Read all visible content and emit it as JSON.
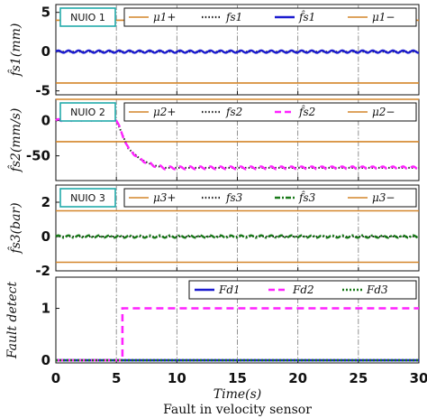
{
  "chart_data": {
    "type": "line",
    "xlabel": "Time(s)",
    "caption": "Fault in velocity sensor",
    "xlim": [
      0,
      30
    ],
    "x_ticks": [
      "0",
      "5",
      "10",
      "15",
      "20",
      "25",
      "30"
    ],
    "fault_time": 5,
    "colors": {
      "threshold": "#d4862a",
      "truth": "#222222",
      "est_blue": "#1c1ccf",
      "est_magenta": "#ff22ff",
      "est_green": "#1a7a1a",
      "nuio_box": "#22aaaa"
    },
    "panels": [
      {
        "box_label": "NUIO 1",
        "ylabel": "f̂s1(mm)",
        "ylim": [
          -5.5,
          6
        ],
        "y_ticks": [
          -5,
          0,
          5
        ],
        "legend": [
          "μ1+",
          "fs1",
          "f̂s1",
          "μ1−"
        ],
        "thresholds": [
          4,
          -4
        ],
        "truth": {
          "name": "fs1",
          "x": [
            0,
            30
          ],
          "y": [
            0,
            0
          ]
        },
        "estimate": {
          "name": "f̂s1",
          "color": "blue",
          "style": "solid",
          "x": [
            0,
            30
          ],
          "y": [
            0,
            0
          ],
          "ripple": 0.15
        }
      },
      {
        "box_label": "NUIO 2",
        "ylabel": "f̂s2(mm/s)",
        "ylim": [
          -85,
          30
        ],
        "y_ticks": [
          -50,
          0
        ],
        "legend": [
          "μ2+",
          "fs2",
          "f̂s2",
          "μ2−"
        ],
        "thresholds": [
          30,
          -30
        ],
        "truth": {
          "name": "fs2",
          "x": [
            0,
            5,
            5.5,
            6,
            7,
            8,
            9,
            30
          ],
          "y": [
            0,
            0,
            -20,
            -40,
            -55,
            -63,
            -67,
            -67
          ]
        },
        "estimate": {
          "name": "f̂s2",
          "color": "magenta",
          "style": "dashed",
          "x": [
            0,
            5,
            5.5,
            6,
            7,
            8,
            9,
            30
          ],
          "y": [
            0,
            0,
            -20,
            -40,
            -55,
            -63,
            -67,
            -67
          ],
          "ripple": 2
        }
      },
      {
        "box_label": "NUIO 3",
        "ylabel": "f̂s3(bar)",
        "ylim": [
          -2,
          3
        ],
        "y_ticks": [
          -2,
          0,
          2
        ],
        "legend": [
          "μ3+",
          "fs3",
          "f̂s3",
          "μ3−"
        ],
        "thresholds": [
          1.5,
          -1.5
        ],
        "truth": {
          "name": "fs3",
          "x": [
            0,
            30
          ],
          "y": [
            0,
            0
          ]
        },
        "estimate": {
          "name": "f̂s3",
          "color": "green",
          "style": "dashdot",
          "x": [
            0,
            30
          ],
          "y": [
            0,
            0
          ],
          "ripple": 0.07
        }
      },
      {
        "box_label": "",
        "ylabel": "Fault detect",
        "ylim": [
          -0.05,
          1.6
        ],
        "y_ticks": [
          0,
          1
        ],
        "legend": [
          "Fd1",
          "Fd2",
          "Fd3"
        ],
        "series": [
          {
            "name": "Fd1",
            "color": "blue",
            "style": "solid",
            "x": [
              0,
              30
            ],
            "y": [
              0,
              0
            ]
          },
          {
            "name": "Fd2",
            "color": "magenta",
            "style": "dashed",
            "x": [
              0,
              5.5,
              5.5,
              30
            ],
            "y": [
              0,
              0,
              1,
              1
            ]
          },
          {
            "name": "Fd3",
            "color": "green",
            "style": "dotted",
            "x": [
              0,
              30
            ],
            "y": [
              0,
              0
            ]
          }
        ]
      }
    ]
  }
}
